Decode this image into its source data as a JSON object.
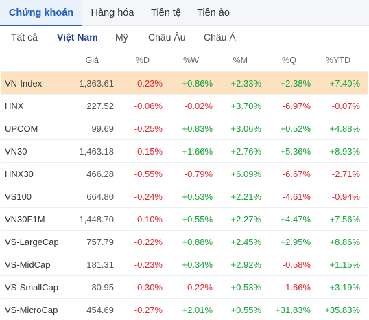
{
  "colors": {
    "up": "#12a33a",
    "down": "#e0262e",
    "accent": "#1f5fbf",
    "highlight": "#fde2c2"
  },
  "main_tabs": [
    "Chứng khoán",
    "Hàng hóa",
    "Tiền tệ",
    "Tiền ảo"
  ],
  "sub_tabs": [
    "Tất cả",
    "Việt Nam",
    "Mỹ",
    "Châu Âu",
    "Châu Á"
  ],
  "headers": {
    "price": "Giá",
    "d": "%D",
    "w": "%W",
    "m": "%M",
    "q": "%Q",
    "ytd": "%YTD"
  },
  "rows": [
    {
      "name": "VN-Index",
      "price": "1,363.61",
      "d": "-0.23%",
      "w": "+0.86%",
      "m": "+2.33%",
      "q": "+2.38%",
      "ytd": "+7.40%"
    },
    {
      "name": "HNX",
      "price": "227.52",
      "d": "-0.06%",
      "w": "-0.02%",
      "m": "+3.70%",
      "q": "-6.97%",
      "ytd": "-0.07%"
    },
    {
      "name": "UPCOM",
      "price": "99.69",
      "d": "-0.25%",
      "w": "+0.83%",
      "m": "+3.06%",
      "q": "+0.52%",
      "ytd": "+4.88%"
    },
    {
      "name": "VN30",
      "price": "1,463.18",
      "d": "-0.15%",
      "w": "+1.66%",
      "m": "+2.76%",
      "q": "+5.36%",
      "ytd": "+8.93%"
    },
    {
      "name": "HNX30",
      "price": "466.28",
      "d": "-0.55%",
      "w": "-0.79%",
      "m": "+6.09%",
      "q": "-6.67%",
      "ytd": "-2.71%"
    },
    {
      "name": "VS100",
      "price": "664.80",
      "d": "-0.24%",
      "w": "+0.53%",
      "m": "+2.21%",
      "q": "-4.61%",
      "ytd": "-0.94%"
    },
    {
      "name": "VN30F1M",
      "price": "1,448.70",
      "d": "-0.10%",
      "w": "+0.55%",
      "m": "+2.27%",
      "q": "+4.47%",
      "ytd": "+7.56%"
    },
    {
      "name": "VS-LargeCap",
      "price": "757.79",
      "d": "-0.22%",
      "w": "+0.88%",
      "m": "+2.45%",
      "q": "+2.95%",
      "ytd": "+8.86%"
    },
    {
      "name": "VS-MidCap",
      "price": "181.31",
      "d": "-0.23%",
      "w": "+0.34%",
      "m": "+2.92%",
      "q": "-0.58%",
      "ytd": "+1.15%"
    },
    {
      "name": "VS-SmallCap",
      "price": "80.95",
      "d": "-0.30%",
      "w": "-0.22%",
      "m": "+0.53%",
      "q": "-1.66%",
      "ytd": "+3.19%"
    },
    {
      "name": "VS-MicroCap",
      "price": "454.69",
      "d": "-0.27%",
      "w": "+2.01%",
      "m": "+0.55%",
      "q": "+31.83%",
      "ytd": "+35.83%"
    }
  ]
}
